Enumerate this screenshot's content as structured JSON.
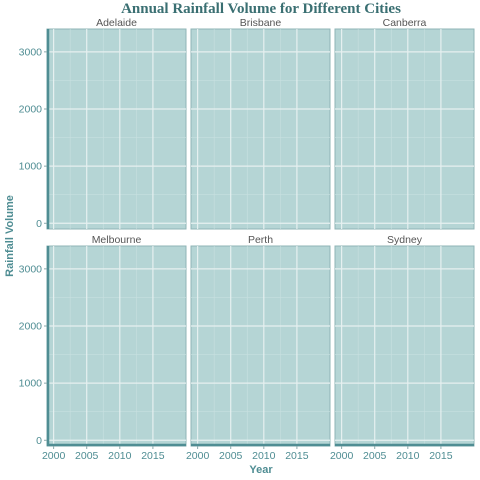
{
  "chart_data": {
    "type": "line",
    "title": "Annual Rainfall Volume for Different Cities",
    "xlabel": "Year",
    "ylabel": "Rainfall Volume",
    "xlim": [
      1999,
      2020
    ],
    "ylim": [
      -100,
      3400
    ],
    "x_ticks": [
      2000,
      2005,
      2010,
      2015
    ],
    "y_ticks": [
      0,
      1000,
      2000,
      3000
    ],
    "facets": [
      "Adelaide",
      "Brisbane",
      "Canberra",
      "Melbourne",
      "Perth",
      "Sydney"
    ],
    "layout": {
      "rows": 2,
      "cols": 3
    },
    "grid": true,
    "legend": "none",
    "colors": {
      "panel_fill": "#b5d5d5",
      "panel_border": "#8fb4b6",
      "grid_major": "#e6f0f0",
      "grid_minor": "#c8e0e0",
      "accent": "#4f8d93",
      "title": "#3a6f72"
    },
    "series": []
  }
}
